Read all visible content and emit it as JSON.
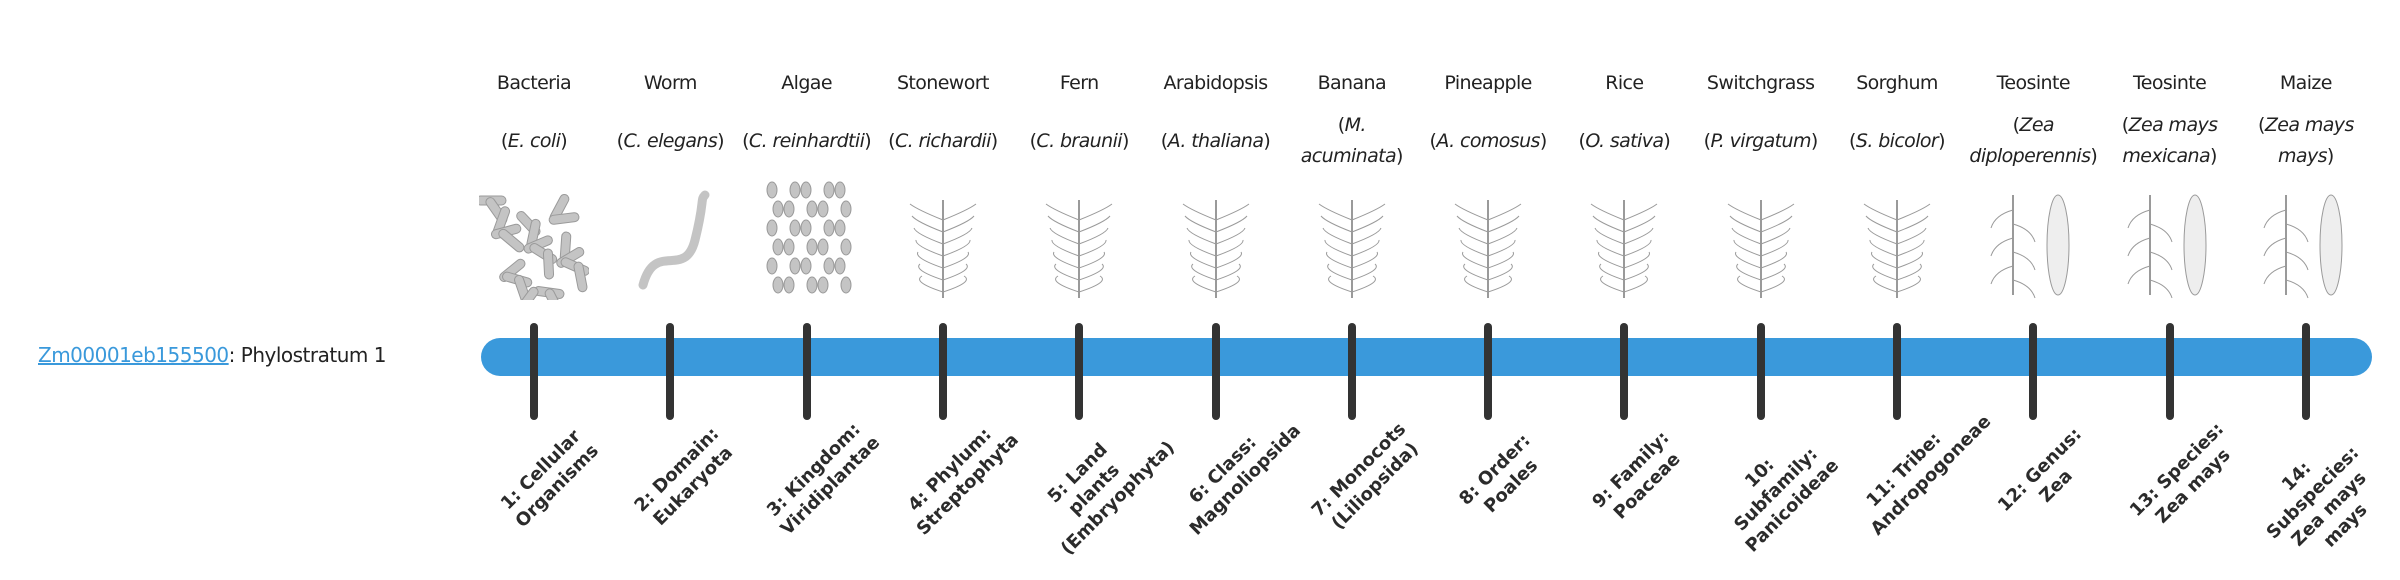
{
  "gene": {
    "id": "Zm00001eb155500",
    "label": ": Phylostratum 1"
  },
  "colors": {
    "bar": "#3a99db",
    "tick": "#333333",
    "link": "#3a99db"
  },
  "strata": [
    {
      "common": "Bacteria",
      "sci": "E. coli",
      "icon": "bacteria-illustration",
      "level": "1: Cellular Organisms"
    },
    {
      "common": "Worm",
      "sci": "C. elegans",
      "icon": "worm-illustration",
      "level": "2: Domain: Eukaryota"
    },
    {
      "common": "Algae",
      "sci": "C. reinhardtii",
      "icon": "algae-illustration",
      "level": "3: Kingdom: Viridiplantae"
    },
    {
      "common": "Stonewort",
      "sci": "C. richardii",
      "icon": "stonewort-illustration",
      "level": "4: Phylum: Streptophyta"
    },
    {
      "common": "Fern",
      "sci": "C. braunii",
      "icon": "fern-illustration",
      "level": "5: Land plants (Embryophyta)"
    },
    {
      "common": "Arabidopsis",
      "sci": "A. thaliana",
      "icon": "arabidopsis-illustration",
      "level": "6: Class: Magnoliopsida"
    },
    {
      "common": "Banana",
      "sci": "M. acuminata",
      "icon": "banana-illustration",
      "level": "7: Monocots (Liliopsida)"
    },
    {
      "common": "Pineapple",
      "sci": "A. comosus",
      "icon": "pineapple-illustration",
      "level": "8: Order: Poales"
    },
    {
      "common": "Rice",
      "sci": "O. sativa",
      "icon": "rice-illustration",
      "level": "9: Family: Poaceae"
    },
    {
      "common": "Switchgrass",
      "sci": "P. virgatum",
      "icon": "switchgrass-illustration",
      "level": "10: Subfamily: Panicoideae"
    },
    {
      "common": "Sorghum",
      "sci": "S. bicolor",
      "icon": "sorghum-illustration",
      "level": "11: Tribe: Andropogoneae"
    },
    {
      "common": "Teosinte",
      "sci": "Zea diploperennis",
      "icon": "teosinte-illustration",
      "level": "12: Genus: Zea"
    },
    {
      "common": "Teosinte",
      "sci": "Zea mays mexicana",
      "icon": "teosinte-mexicana-illustration",
      "level": "13: Species: Zea mays"
    },
    {
      "common": "Maize",
      "sci": "Zea mays mays",
      "icon": "maize-illustration",
      "level": "14: Subspecies: Zea mays mays"
    }
  ]
}
